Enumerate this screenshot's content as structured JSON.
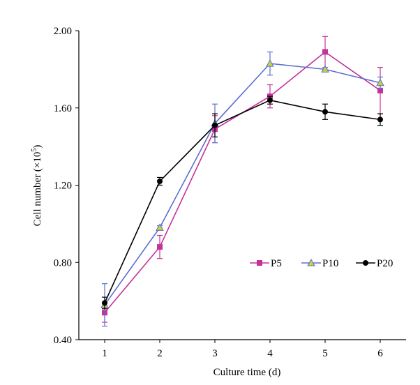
{
  "chart_data": {
    "type": "line",
    "title": "",
    "xlabel": "Culture time (d)",
    "ylabel_main": "Cell number (×10",
    "ylabel_sup": "5",
    "ylabel_close": ")",
    "categories": [
      "1",
      "2",
      "3",
      "4",
      "5",
      "6"
    ],
    "x": [
      1,
      2,
      3,
      4,
      5,
      6
    ],
    "ylim": [
      0.4,
      2.0
    ],
    "y_ticks": [
      "0.40",
      "0.80",
      "1.20",
      "1.60",
      "2.00"
    ],
    "y_tick_values": [
      0.4,
      0.8,
      1.2,
      1.6,
      2.0
    ],
    "grid": false,
    "legend_position": "center-right",
    "series": [
      {
        "name": "P5",
        "color": "#c4329a",
        "marker": "square",
        "values": [
          0.54,
          0.88,
          1.49,
          1.66,
          1.89,
          1.69
        ],
        "errors": [
          0.05,
          0.06,
          0.07,
          0.06,
          0.08,
          0.12
        ]
      },
      {
        "name": "P10",
        "color": "#5b6fd0",
        "marker": "triangle",
        "values": [
          0.58,
          0.98,
          1.52,
          1.83,
          1.8,
          1.73
        ],
        "errors": [
          0.11,
          0.01,
          0.1,
          0.06,
          0.01,
          0.03
        ]
      },
      {
        "name": "P20",
        "color": "#000000",
        "marker": "circle",
        "values": [
          0.59,
          1.22,
          1.51,
          1.64,
          1.58,
          1.54
        ],
        "errors": [
          0.03,
          0.02,
          0.06,
          0.02,
          0.04,
          0.03
        ]
      }
    ]
  }
}
